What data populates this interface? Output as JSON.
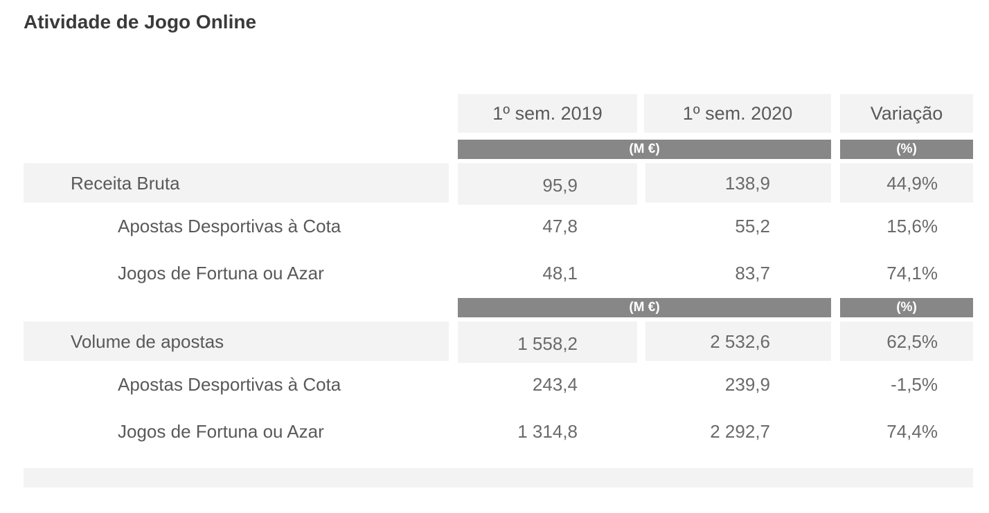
{
  "title": "Atividade de Jogo Online",
  "columns": {
    "col1": "1º sem. 2019",
    "col2": "1º sem. 2020",
    "col3": "Variação"
  },
  "units": {
    "money": "(M €)",
    "percent": "(%)"
  },
  "sections": [
    {
      "label": "Receita Bruta",
      "values": [
        "95,9",
        "138,9",
        "44,9%"
      ],
      "rows": [
        {
          "label": "Apostas Desportivas à Cota",
          "values": [
            "47,8",
            "55,2",
            "15,6%"
          ]
        },
        {
          "label": "Jogos de Fortuna ou Azar",
          "values": [
            "48,1",
            "83,7",
            "74,1%"
          ]
        }
      ]
    },
    {
      "label": "Volume de apostas",
      "values": [
        "1 558,2",
        "2 532,6",
        "62,5%"
      ],
      "rows": [
        {
          "label": "Apostas Desportivas à Cota",
          "values": [
            "243,4",
            "239,9",
            "-1,5%"
          ]
        },
        {
          "label": "Jogos de Fortuna ou Azar",
          "values": [
            "1 314,8",
            "2 292,7",
            "74,4%"
          ]
        }
      ]
    }
  ]
}
